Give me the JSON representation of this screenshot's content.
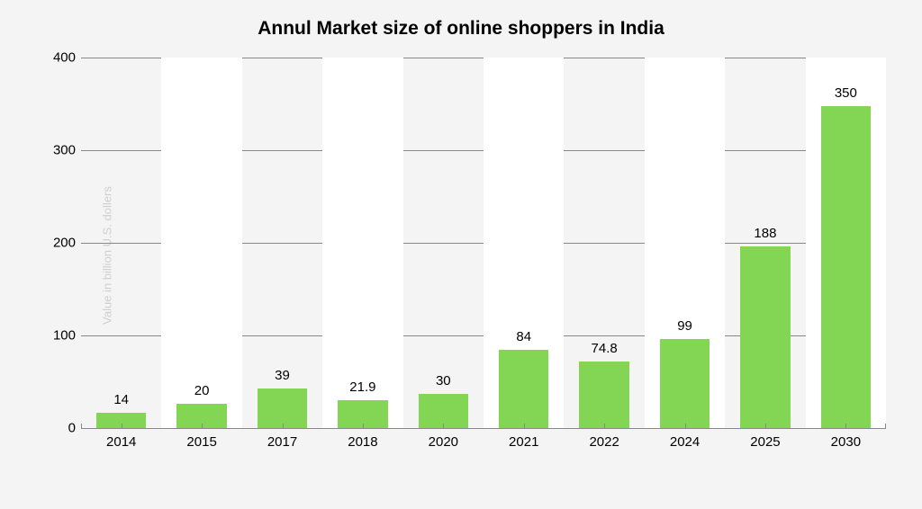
{
  "chart": {
    "type": "bar",
    "title": "Annul Market size of online shoppers in India",
    "title_fontsize": 21,
    "title_fontweight": "700",
    "yaxis_title": "Value in billion U.S. dollers",
    "yaxis_title_color": "#cfcfcf",
    "yaxis_title_fontsize": 13,
    "categories": [
      "2014",
      "2015",
      "2017",
      "2018",
      "2020",
      "2021",
      "2022",
      "2024",
      "2025",
      "2030"
    ],
    "values": [
      14,
      20,
      39,
      21.9,
      30,
      84,
      74.8,
      99,
      188,
      350
    ],
    "bar_heights_for_render": [
      17,
      26,
      43,
      30,
      37,
      84,
      72,
      96,
      196,
      348
    ],
    "bar_color": "#83d653",
    "bar_width_pct": 62,
    "ylim": [
      0,
      400
    ],
    "ytick_step": 100,
    "yticks": [
      0,
      100,
      200,
      300,
      400
    ],
    "grid_color": "#888888",
    "background_color": "#f4f4f4",
    "alt_band_color": "#ffffff",
    "axis_label_fontsize": 15,
    "bar_label_fontsize": 15,
    "text_color": "#000000"
  }
}
